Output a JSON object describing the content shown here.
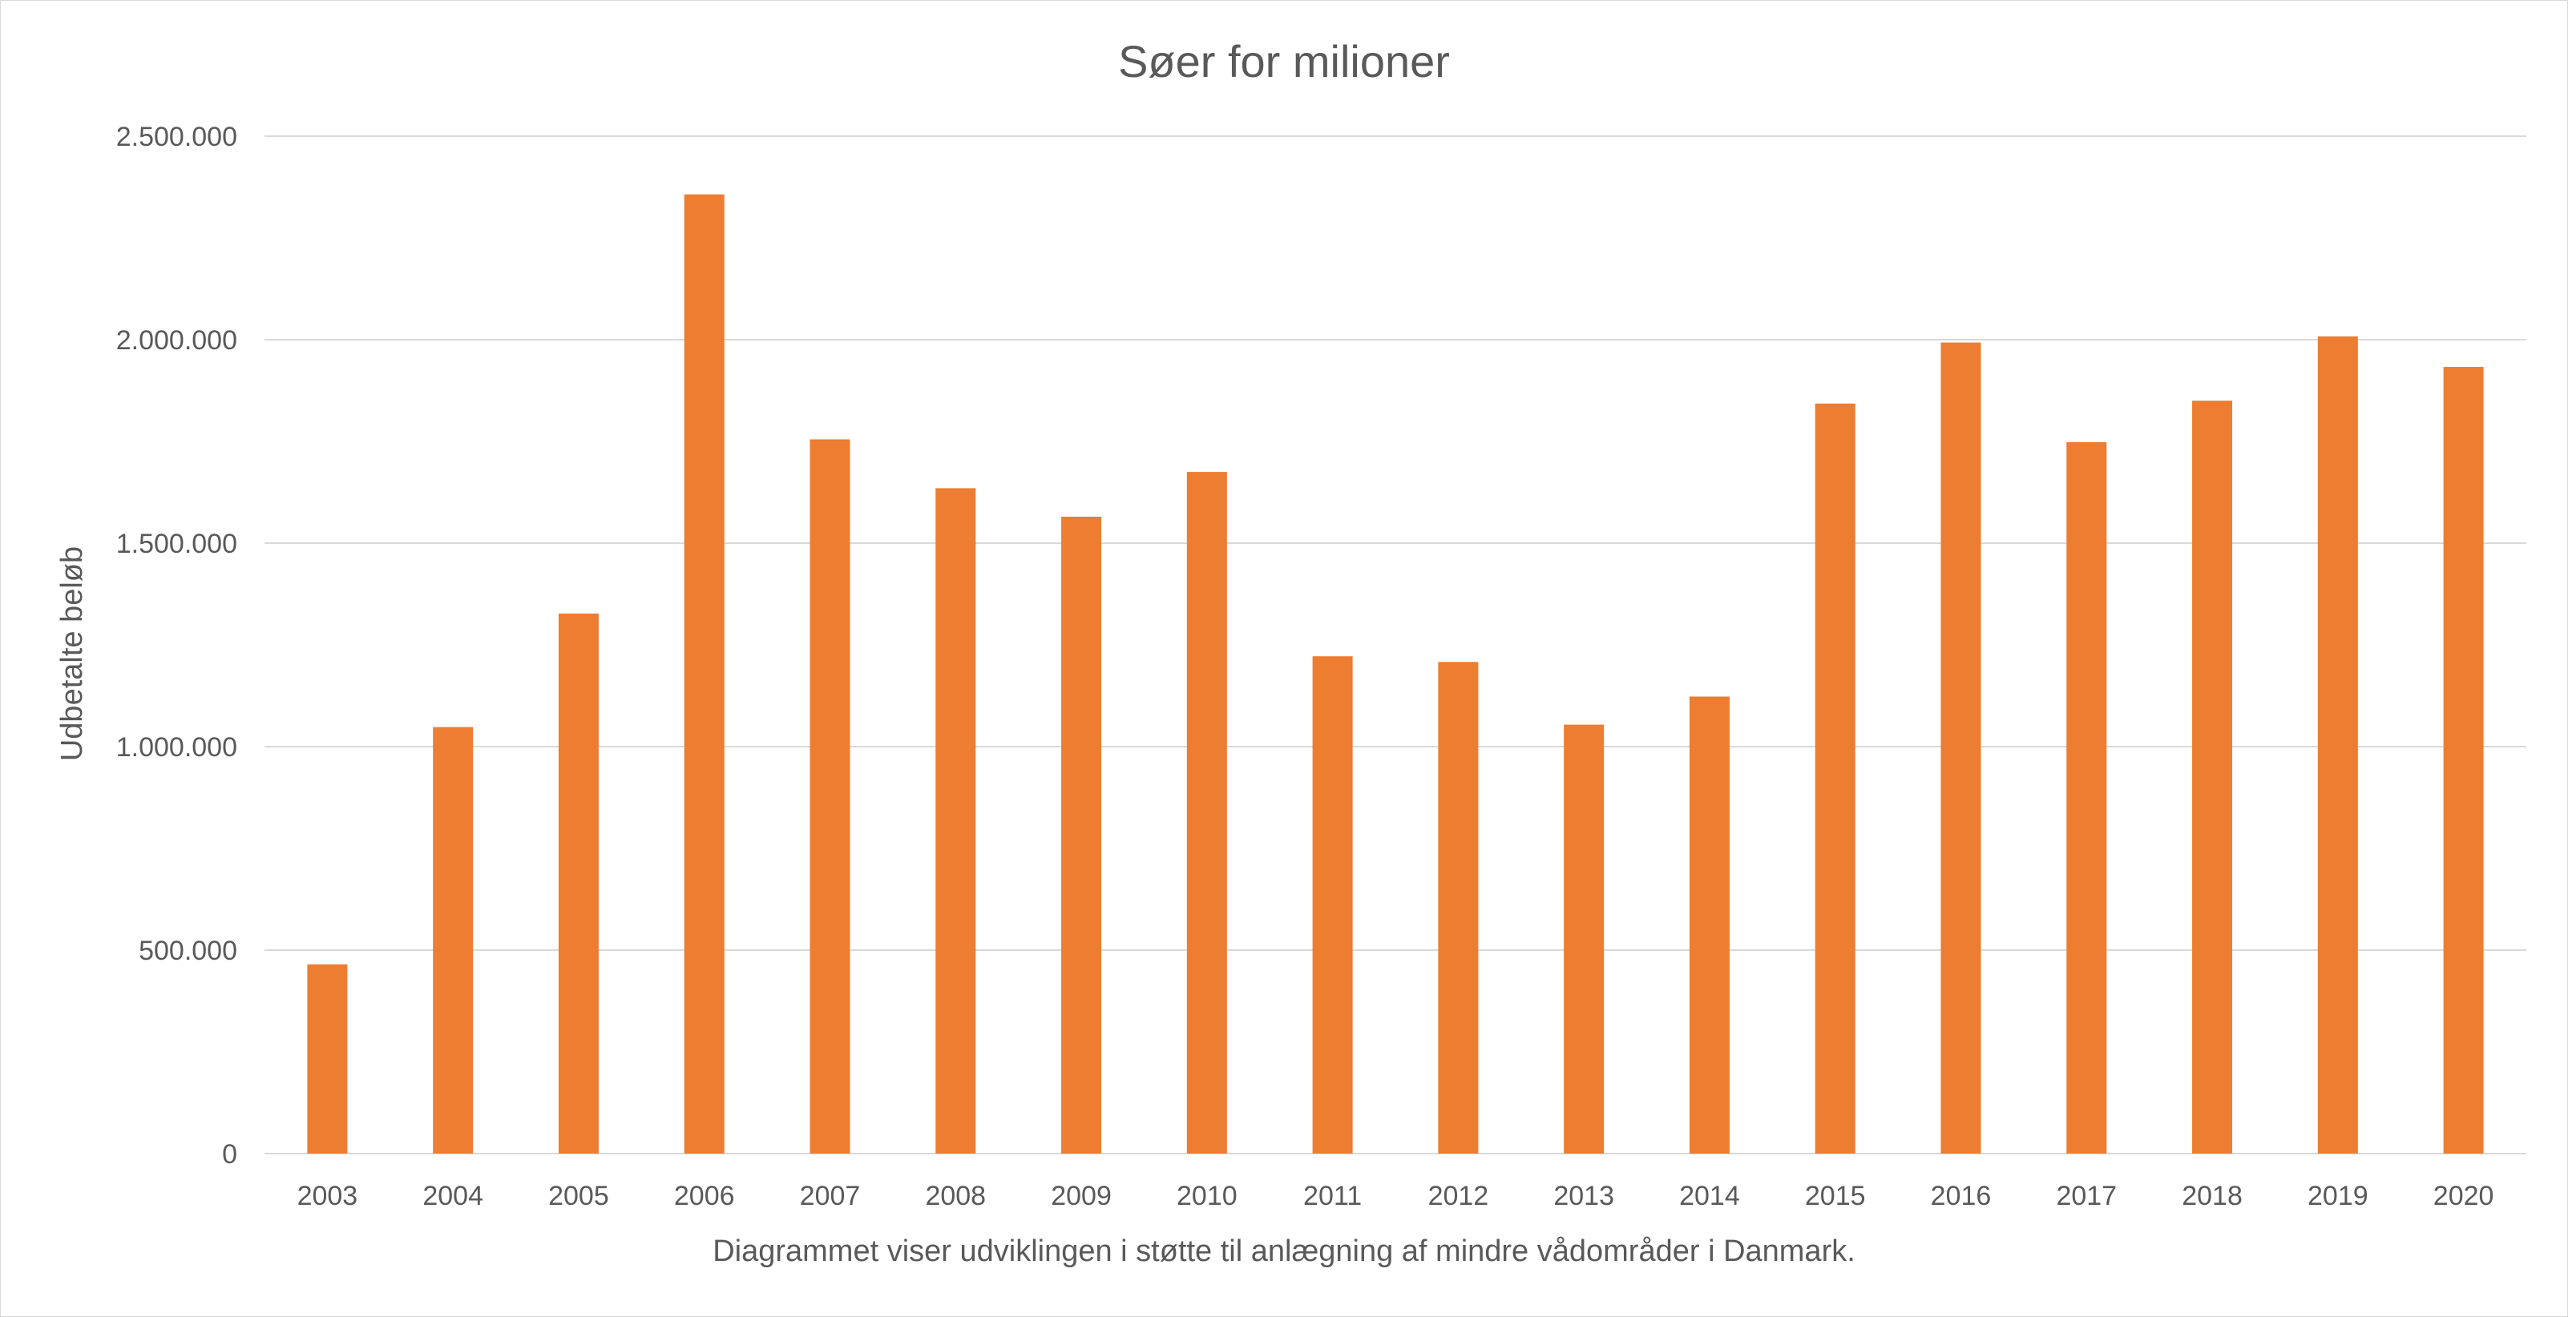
{
  "chart_data": {
    "type": "bar",
    "title": "Søer for milioner",
    "xlabel": "Diagrammet viser udviklingen i støtte til anlægning af mindre vådområder i Danmark.",
    "ylabel": "Udbetalte beløb",
    "categories": [
      "2003",
      "2004",
      "2005",
      "2006",
      "2007",
      "2008",
      "2009",
      "2010",
      "2011",
      "2012",
      "2013",
      "2014",
      "2015",
      "2016",
      "2017",
      "2018",
      "2019",
      "2020"
    ],
    "series": [
      {
        "values": [
          465000,
          1048000,
          1327000,
          2357000,
          1755000,
          1635000,
          1565000,
          1675000,
          1222000,
          1208000,
          1054000,
          1123000,
          1843000,
          1993000,
          1748000,
          1850000,
          2008000,
          1933000
        ],
        "color": "#ed7d31"
      }
    ],
    "ylim": [
      0,
      2500000
    ],
    "yticks": [
      {
        "value": 0,
        "label": "0"
      },
      {
        "value": 500000,
        "label": "500.000"
      },
      {
        "value": 1000000,
        "label": "1.000.000"
      },
      {
        "value": 1500000,
        "label": "1.500.000"
      },
      {
        "value": 2000000,
        "label": "2.000.000"
      },
      {
        "value": 2500000,
        "label": "2.500.000"
      }
    ],
    "grid": true,
    "legend": "none",
    "colors": {
      "bar": "#ed7d31",
      "grid": "#d9d9d9",
      "text": "#595959"
    }
  }
}
